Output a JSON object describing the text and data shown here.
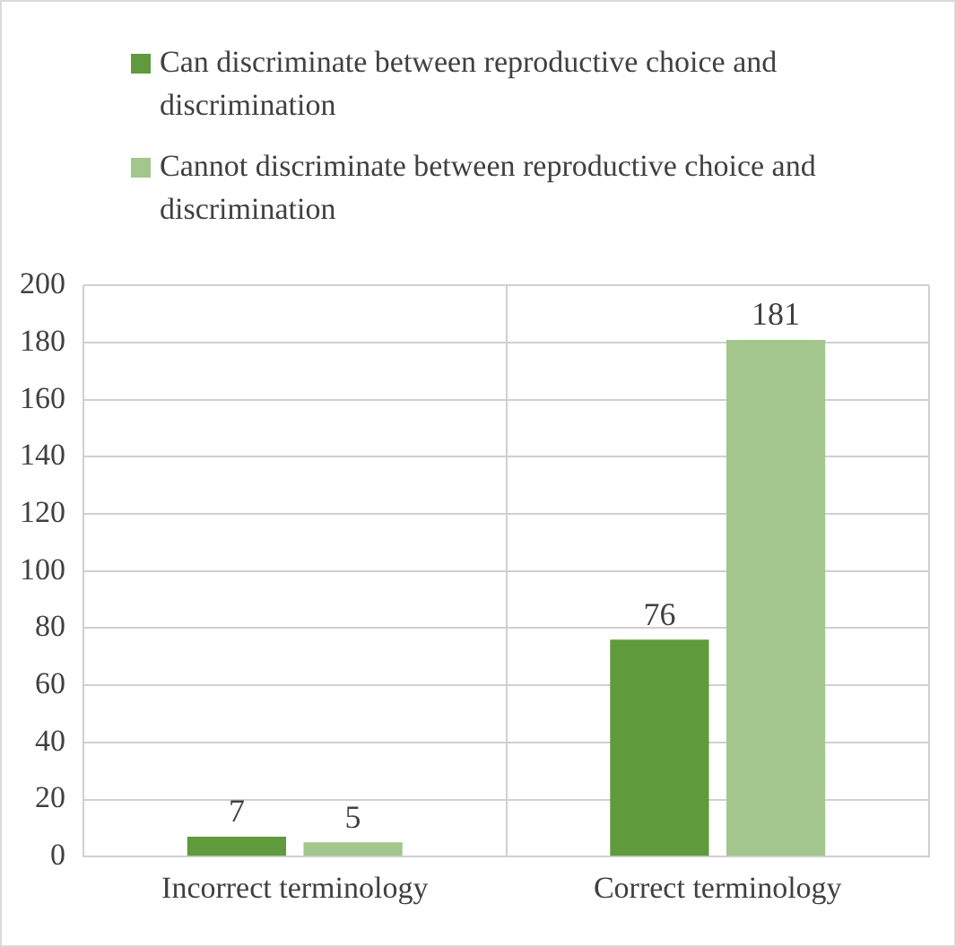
{
  "chart_data": {
    "type": "bar",
    "categories": [
      "Incorrect terminology",
      "Correct terminology"
    ],
    "series": [
      {
        "name": "Can discriminate between reproductive choice and discrimination",
        "color": "#5f9a3c",
        "values": [
          7,
          76
        ]
      },
      {
        "name": "Cannot discriminate between reproductive choice and discrimination",
        "color": "#a3c68c",
        "values": [
          5,
          181
        ]
      }
    ],
    "ylim": [
      0,
      200
    ],
    "yticks": [
      0,
      20,
      40,
      60,
      80,
      100,
      120,
      140,
      160,
      180,
      200
    ],
    "grid": true,
    "legend": "top",
    "data_labels": true
  }
}
